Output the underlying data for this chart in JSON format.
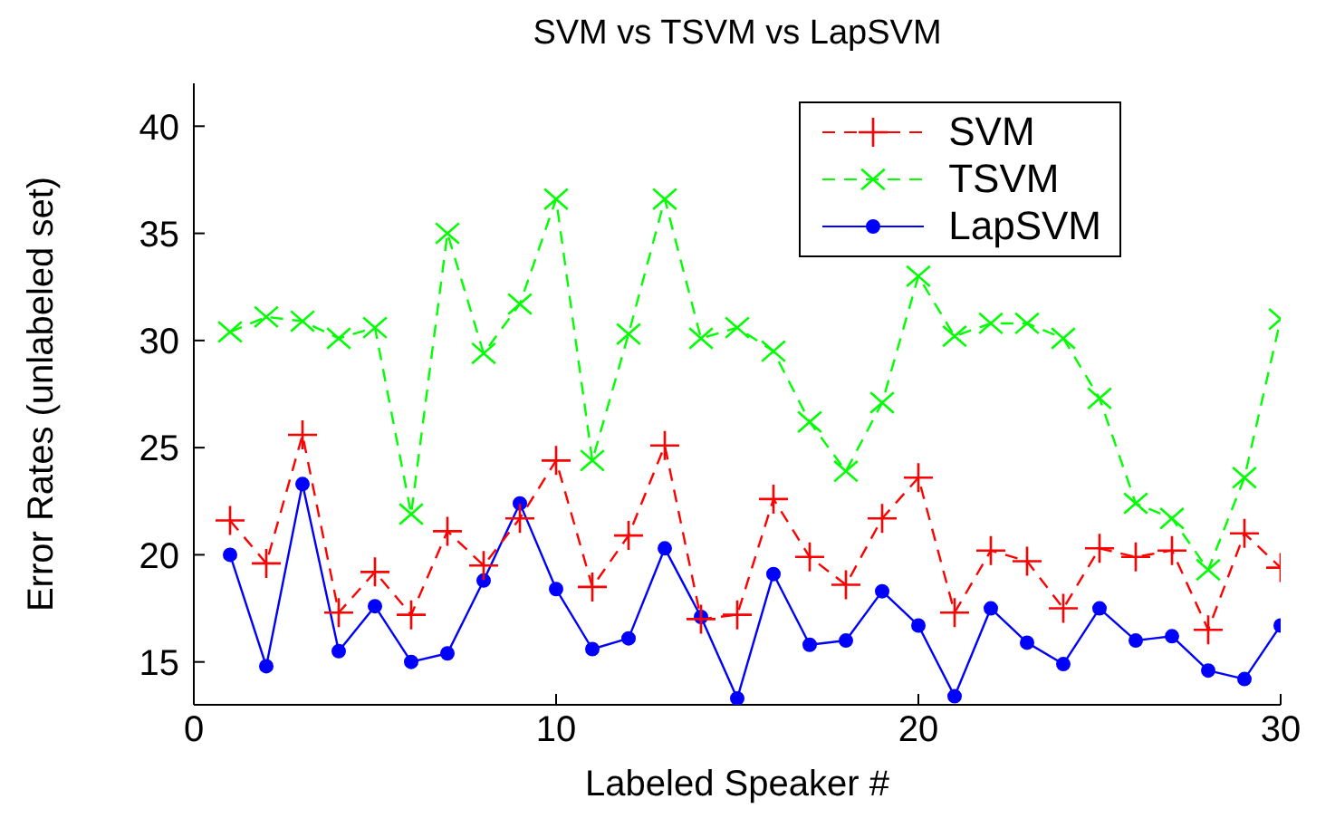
{
  "chart_data": {
    "type": "line",
    "title": "SVM vs TSVM vs LapSVM",
    "xlabel": "Labeled Speaker #",
    "ylabel": "Error Rates (unlabeled set)",
    "x": [
      1,
      2,
      3,
      4,
      5,
      6,
      7,
      8,
      9,
      10,
      11,
      12,
      13,
      14,
      15,
      16,
      17,
      18,
      19,
      20,
      21,
      22,
      23,
      24,
      25,
      26,
      27,
      28,
      29,
      30
    ],
    "xlim": [
      0,
      30
    ],
    "xticks": [
      0,
      10,
      20,
      30
    ],
    "ylim": [
      13,
      42
    ],
    "yticks": [
      15,
      20,
      25,
      30,
      35,
      40
    ],
    "grid": false,
    "legend": "top right",
    "series": [
      {
        "name": "SVM",
        "color": "#ff0000",
        "marker": "cross",
        "line_style": "dashed",
        "values": [
          21.6,
          19.6,
          25.6,
          17.3,
          19.2,
          17.2,
          21.1,
          19.5,
          21.7,
          24.4,
          18.5,
          20.9,
          25.1,
          17.0,
          17.2,
          22.6,
          19.9,
          18.6,
          21.7,
          23.6,
          17.3,
          20.2,
          19.7,
          17.5,
          20.3,
          19.9,
          20.2,
          16.5,
          21.0,
          19.4
        ]
      },
      {
        "name": "TSVM",
        "color": "#00ff00",
        "marker": "x",
        "line_style": "dashed",
        "values": [
          30.4,
          31.1,
          30.9,
          30.1,
          30.6,
          21.9,
          35.0,
          29.4,
          31.7,
          36.6,
          24.4,
          30.3,
          36.6,
          30.1,
          30.6,
          29.5,
          26.2,
          23.9,
          27.1,
          33.0,
          30.2,
          30.8,
          30.8,
          30.1,
          27.3,
          22.4,
          21.7,
          19.3,
          23.6,
          31.0
        ]
      },
      {
        "name": "LapSVM",
        "color": "#0000ff",
        "marker": "circle",
        "line_style": "solid",
        "values": [
          20.0,
          14.8,
          23.3,
          15.5,
          17.6,
          15.0,
          15.4,
          18.8,
          22.4,
          18.4,
          15.6,
          16.1,
          20.3,
          17.1,
          13.3,
          19.1,
          15.8,
          16.0,
          18.3,
          16.7,
          13.4,
          17.5,
          15.9,
          14.9,
          17.5,
          16.0,
          16.2,
          14.6,
          14.2,
          16.7
        ]
      }
    ]
  }
}
